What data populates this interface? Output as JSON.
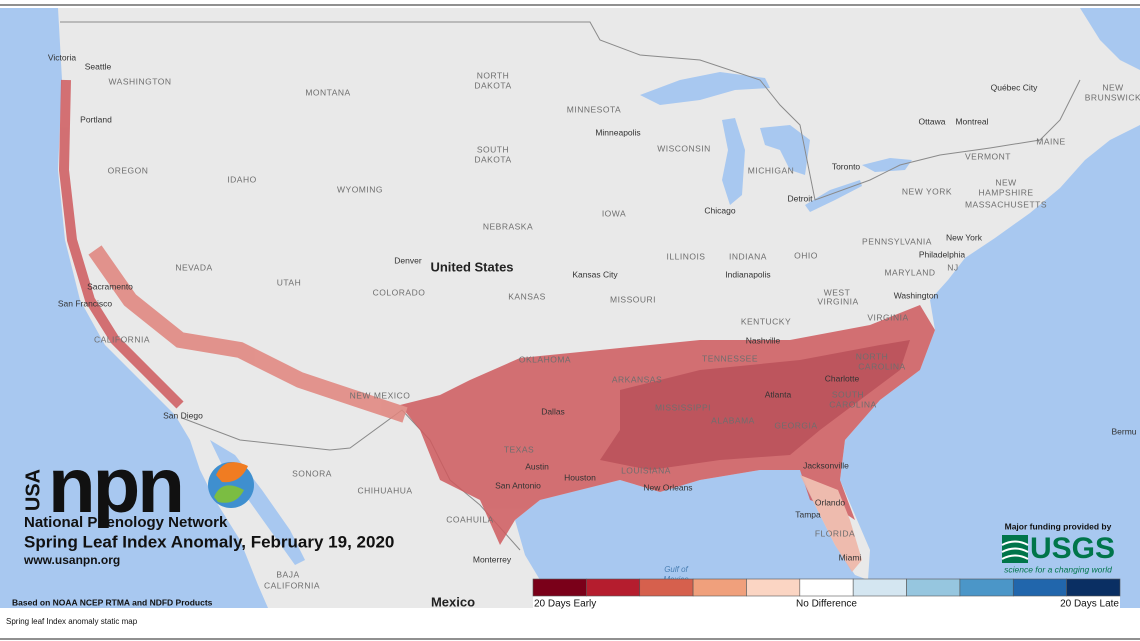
{
  "map": {
    "labels": [
      "Victoria",
      "Seattle",
      "WASHINGTON",
      "Portland",
      "MONTANA",
      "NORTH",
      "DAKOTA",
      "MINNESOTA",
      "Minneapolis",
      "WISCONSIN",
      "MICHIGAN",
      "SOUTH",
      "DAKOTA",
      "OREGON",
      "IDAHO",
      "WYOMING",
      "IOWA",
      "NEBRASKA",
      "Chicago",
      "Detroit",
      "Toronto",
      "Ottawa",
      "Montreal",
      "Québec City",
      "NEW",
      "BRUNSWICK",
      "MAINE",
      "VERMONT",
      "NEW",
      "HAMPSHIRE",
      "NEW YORK",
      "MASSACHUSETTS",
      "New York",
      "PENNSYLVANIA",
      "OHIO",
      "INDIANA",
      "ILLINOIS",
      "Indianapolis",
      "NEVADA",
      "UTAH",
      "Denver",
      "United States",
      "COLORADO",
      "KANSAS",
      "Kansas City",
      "MISSOURI",
      "Philadelphia",
      "NJ",
      "MARYLAND",
      "Washington",
      "WEST",
      "VIRGINIA",
      "VIRGINIA",
      "KENTUCKY",
      "Sacramento",
      "San Francisco",
      "CALIFORNIA",
      "Nashville",
      "TENNESSEE",
      "NORTH",
      "CAROLINA",
      "Charlotte",
      "OKLAHOMA",
      "ARKANSAS",
      "NEW MEXICO",
      "Atlanta",
      "SOUTH",
      "CAROLINA",
      "Dallas",
      "MISSISSIPPI",
      "ALABAMA",
      "GEORGIA",
      "Bermu",
      "San Diego",
      "TEXAS",
      "Austin",
      "Houston",
      "San Antonio",
      "LOUISIANA",
      "Jacksonville",
      "New Orleans",
      "SONORA",
      "CHIHUAHUA",
      "Orlando",
      "Tampa",
      "FLORIDA",
      "COAHUILA",
      "Miami",
      "Monterrey",
      "Gulf of",
      "Mexico",
      "BAJA",
      "CALIFORNIA",
      "Mexico"
    ]
  },
  "logo": {
    "country": "USA",
    "wordmark": "npn",
    "name": "National Phenology Network",
    "url": "www.usanpn.org"
  },
  "title": "Spring Leaf Index Anomaly, February 19, 2020",
  "source": "Based on NOAA NCEP RTMA and NDFD Products",
  "funding": {
    "text": "Major funding provided by",
    "agency": "USGS",
    "tagline": "science for a changing world"
  },
  "legend": {
    "colors": [
      "#7a0019",
      "#b51d2e",
      "#d6604d",
      "#f0a07c",
      "#fbd5c3",
      "#ffffff",
      "#d4e6f1",
      "#96c6df",
      "#4b96c8",
      "#2166ac",
      "#0a2f63"
    ],
    "labels": [
      "20 Days Early",
      "No Difference",
      "20 Days Late"
    ]
  },
  "caption": "Spring leaf Index anomaly static map"
}
